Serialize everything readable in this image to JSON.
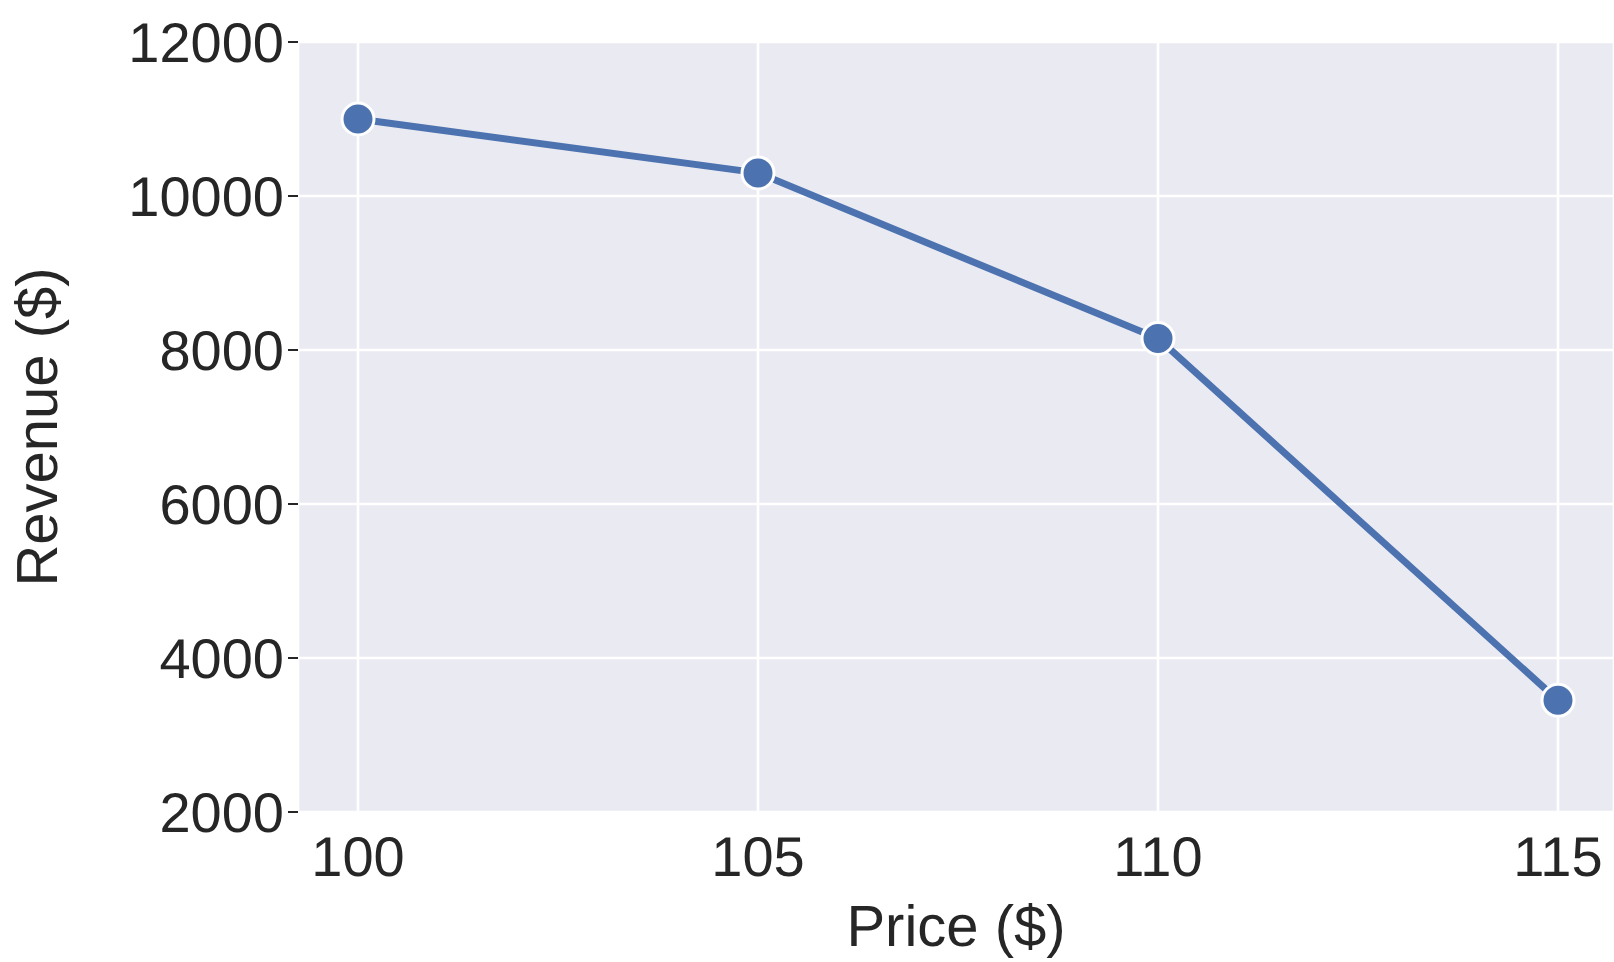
{
  "chart_data": {
    "type": "line",
    "xlabel": "Price ($)",
    "ylabel": "Revenue ($)",
    "x": [
      100,
      105,
      110,
      115
    ],
    "series": [
      {
        "color": "#4c72b0",
        "values": [
          11000,
          10300,
          8150,
          3450
        ]
      }
    ],
    "xlim": [
      99.25,
      115.7
    ],
    "xticks": [
      100,
      105,
      110,
      115
    ],
    "ylim": [
      2000,
      12000
    ],
    "yticks": [
      2000,
      4000,
      6000,
      8000,
      10000,
      12000
    ],
    "grid": true,
    "marker": "circle",
    "line_style": "solid",
    "legend": false
  }
}
